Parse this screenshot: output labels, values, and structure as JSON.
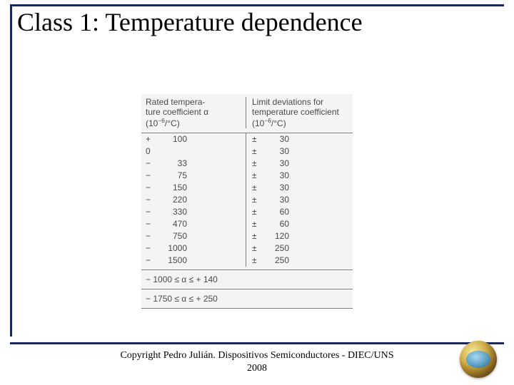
{
  "title": "Class 1: Temperature dependence",
  "table": {
    "header": {
      "col1_line1": "Rated tempera-",
      "col1_line2": "ture coefficient α",
      "col1_line3_prefix": "(10",
      "col1_line3_sup": "−6",
      "col1_line3_suffix": "/°C)",
      "col2_line1": "Limit deviations for",
      "col2_line2": "temperature coefficient",
      "col2_line3_prefix": "(10",
      "col2_line3_sup": "−6",
      "col2_line3_suffix": "/°C)"
    },
    "rows": [
      {
        "sign": "+",
        "value": "100",
        "pm": "±",
        "dev": "30"
      },
      {
        "sign": "0",
        "value": "",
        "pm": "±",
        "dev": "30"
      },
      {
        "sign": "−",
        "value": "33",
        "pm": "±",
        "dev": "30"
      },
      {
        "sign": "−",
        "value": "75",
        "pm": "±",
        "dev": "30"
      },
      {
        "sign": "−",
        "value": "150",
        "pm": "±",
        "dev": "30"
      },
      {
        "sign": "−",
        "value": "220",
        "pm": "±",
        "dev": "30"
      },
      {
        "sign": "−",
        "value": "330",
        "pm": "±",
        "dev": "60"
      },
      {
        "sign": "−",
        "value": "470",
        "pm": "±",
        "dev": "60"
      },
      {
        "sign": "−",
        "value": "750",
        "pm": "±",
        "dev": "120"
      },
      {
        "sign": "−",
        "value": "1000",
        "pm": "±",
        "dev": "250"
      },
      {
        "sign": "−",
        "value": "1500",
        "pm": "±",
        "dev": "250"
      }
    ],
    "ranges": [
      "− 1000 ≤ α ≤ + 140",
      "− 1750 ≤ α ≤ + 250"
    ]
  },
  "footer": {
    "line1": "Copyright  Pedro Julián. Dispositivos Semiconductores - DIEC/UNS",
    "line2": "2008"
  },
  "colors": {
    "frame": "#1a2a5a",
    "table_bg": "#f5f4f2",
    "table_border": "#808080",
    "text": "#4a4a4a"
  }
}
